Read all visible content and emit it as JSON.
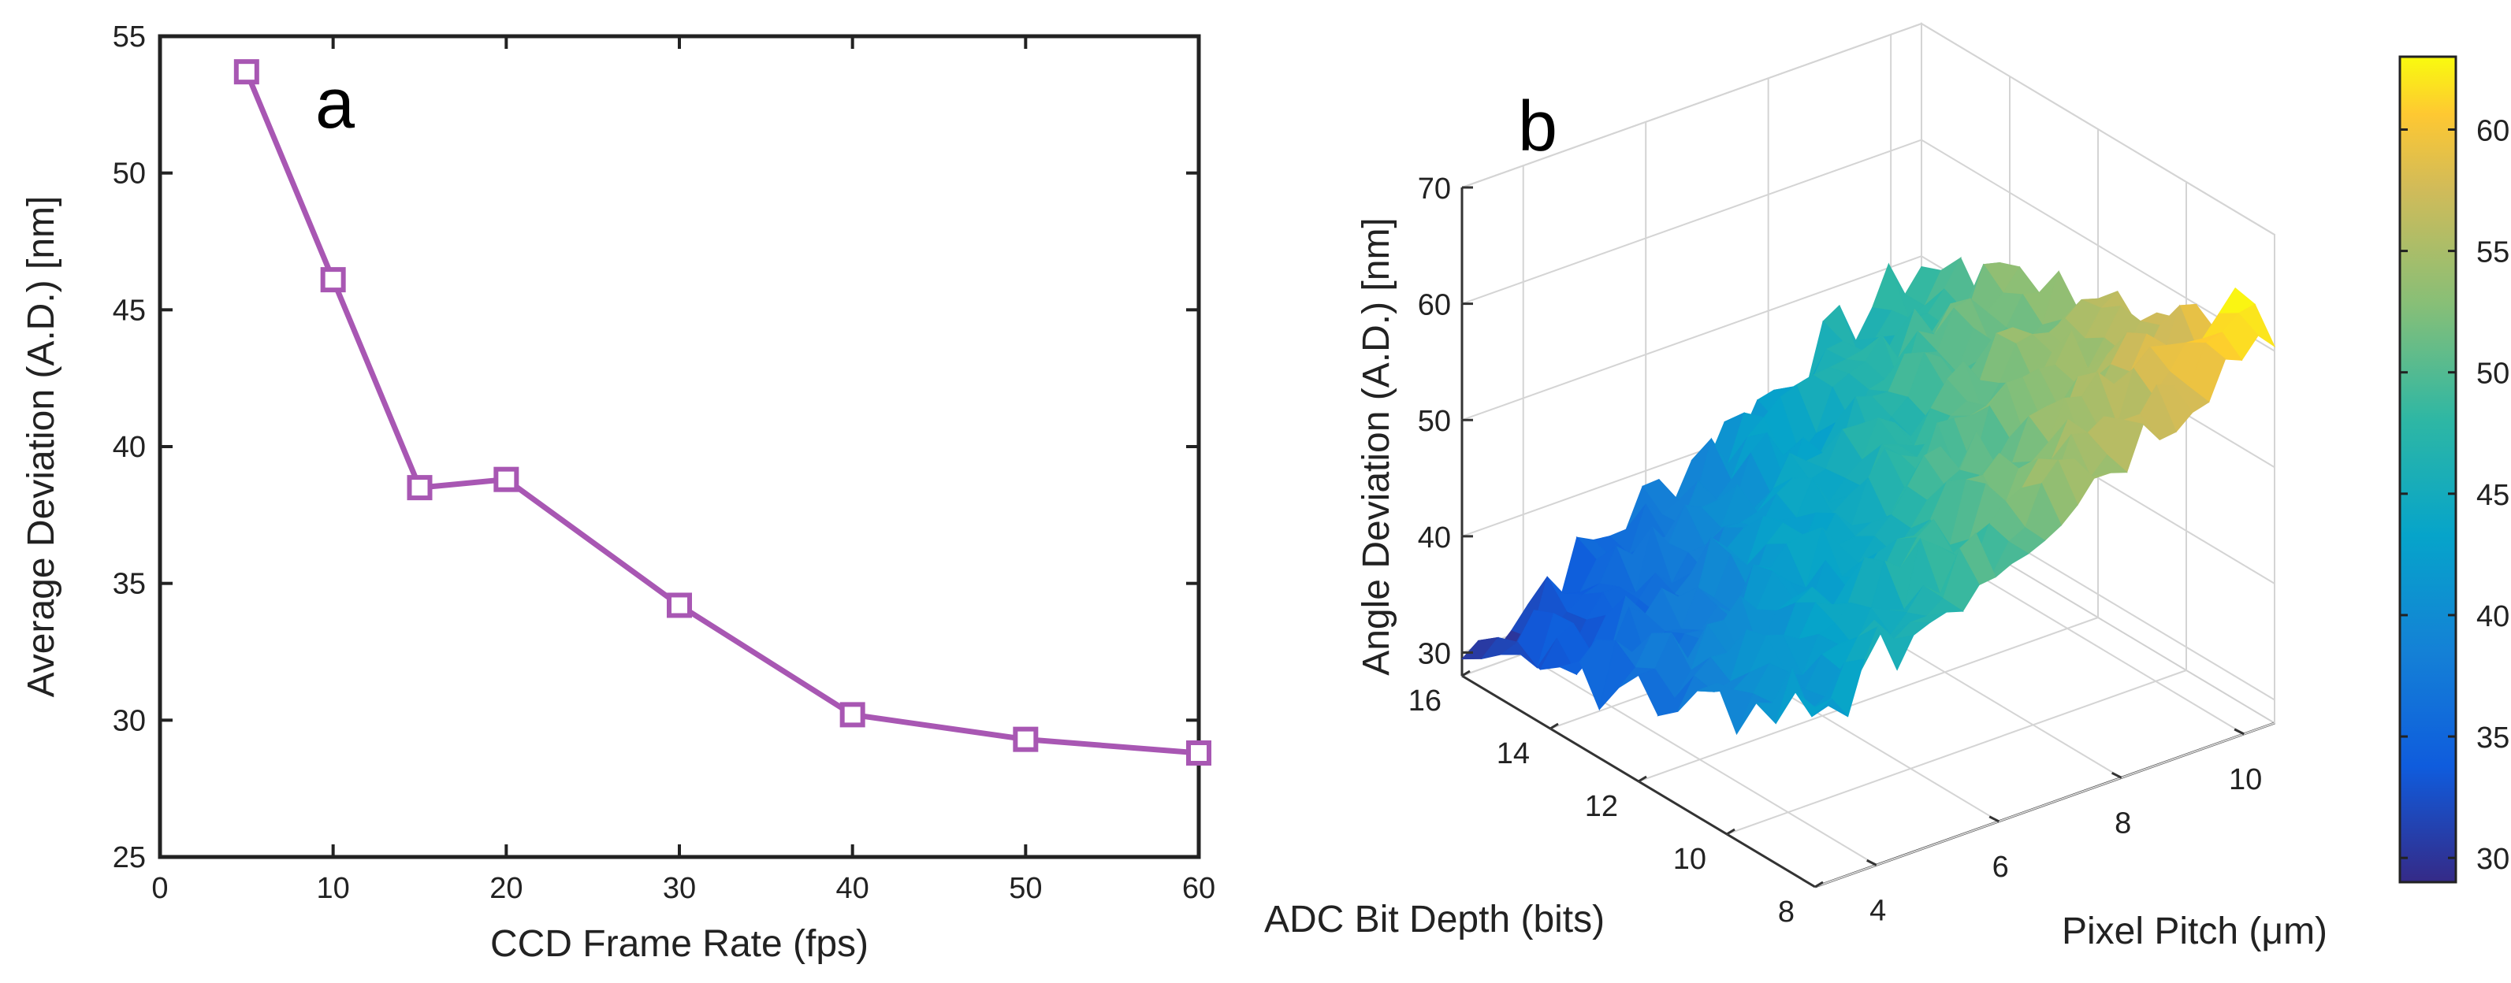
{
  "chart_data": [
    {
      "panel_label": "a",
      "type": "line",
      "x": [
        5,
        10,
        15,
        20,
        30,
        40,
        50,
        60
      ],
      "y": [
        53.7,
        46.1,
        38.5,
        38.8,
        34.2,
        30.2,
        29.3,
        28.8
      ],
      "xlabel": "CCD Frame Rate (fps)",
      "ylabel": "Average Deviation (A.D.) [nm]",
      "xlim": [
        0,
        60
      ],
      "ylim": [
        25,
        55
      ],
      "xticks": [
        "0",
        "10",
        "20",
        "30",
        "40",
        "50",
        "60"
      ],
      "yticks": [
        "25",
        "30",
        "35",
        "40",
        "45",
        "50",
        "55"
      ],
      "series_color": "#a857b3",
      "marker": "square"
    },
    {
      "panel_label": "b",
      "type": "surface3d",
      "zlabel": "Angle Deviation (A.D.) [nm]",
      "xlabel": "ADC Bit Depth (bits)",
      "ylabel": "Pixel Pitch (μm)",
      "zticks": [
        "30",
        "40",
        "50",
        "60",
        "70"
      ],
      "xticks": [
        "8",
        "10",
        "12",
        "14",
        "16"
      ],
      "yticks": [
        "4",
        "6",
        "8",
        "10"
      ],
      "zlim": [
        28,
        70
      ],
      "bit_depth_range": [
        8,
        16
      ],
      "pixel_pitch_range": [
        3,
        10.5
      ],
      "corner_values": {
        "bit16_pitch3": 29.5,
        "bit8_pitch3": 42.5,
        "bit16_pitch10": 49.5,
        "bit8_pitch10": 62.5
      },
      "colorbar": {
        "ticks": [
          "30",
          "35",
          "40",
          "45",
          "50",
          "55",
          "60"
        ],
        "range": [
          29,
          63
        ],
        "colormap": "parula"
      }
    }
  ]
}
